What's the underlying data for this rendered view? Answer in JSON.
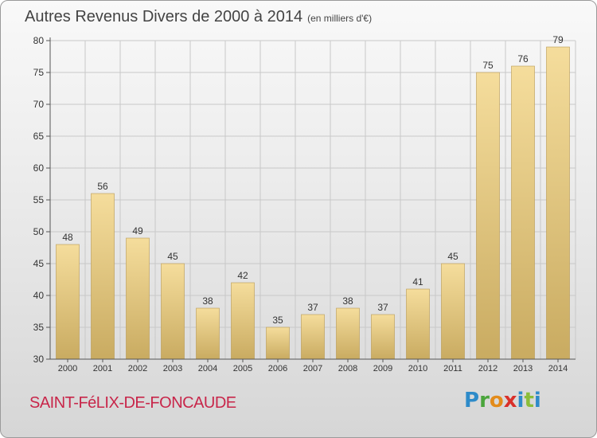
{
  "header": {
    "title": "Autres Revenus Divers de 2000 à 2014",
    "unit": "(en milliers d'€)"
  },
  "footer": {
    "commune": "SAINT-FéLIX-DE-FONCAUDE",
    "logo": {
      "letters": [
        "P",
        "r",
        "o",
        "x",
        "i",
        "t",
        "i"
      ],
      "colors": [
        "#2e8bc9",
        "#4aa53c",
        "#e38b1a",
        "#d9302a",
        "#2e8bc9",
        "#8bbd3a",
        "#2e8bc9"
      ]
    }
  },
  "chart_data": {
    "type": "bar",
    "title": "Autres Revenus Divers de 2000 à 2014",
    "subtitle": "(en milliers d'€)",
    "categories": [
      "2000",
      "2001",
      "2002",
      "2003",
      "2004",
      "2005",
      "2006",
      "2007",
      "2008",
      "2009",
      "2010",
      "2011",
      "2012",
      "2013",
      "2014"
    ],
    "values": [
      48,
      56,
      49,
      45,
      38,
      42,
      35,
      37,
      38,
      37,
      41,
      45,
      75,
      76,
      79
    ],
    "ylim": [
      30,
      80
    ],
    "yticks": [
      30,
      35,
      40,
      45,
      50,
      55,
      60,
      65,
      70,
      75,
      80
    ],
    "grid": true,
    "colors": {
      "bar_light": "#f5dd9c",
      "bar_dark": "#c9ab61",
      "bar_stroke": "#b89a55",
      "grid": "#c8c8c8",
      "axis": "#555555",
      "text": "#333333"
    }
  }
}
